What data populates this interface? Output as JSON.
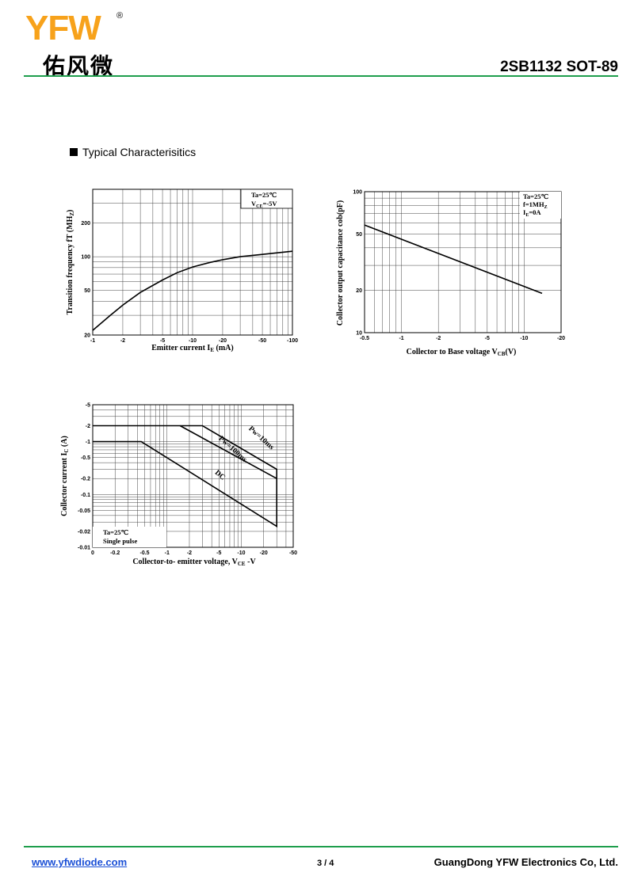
{
  "header": {
    "logo_y": "Y",
    "logo_f": "F",
    "logo_w": "W",
    "logo_reg": "®",
    "logo_cn": "佑风微",
    "part_title": "2SB1132 SOT-89",
    "brand_color": "#f7a21b",
    "rule_color": "#1e9e4c"
  },
  "section_title": "Typical  Characterisitics",
  "chart_data": [
    {
      "type": "line",
      "xscale": "log",
      "yscale": "log",
      "xlabel_main": "Emitter current I",
      "xlabel_sub": "E",
      "xlabel_unit": " (mA)",
      "ylabel_main": "Transition frequency fT (MH",
      "ylabel_sub": "Z",
      "ylabel_unit": ")",
      "x_ticks": [
        "-1",
        "-2",
        "-5",
        "-10",
        "-20",
        "-50",
        "-100"
      ],
      "x_tick_values": [
        1,
        2,
        5,
        10,
        20,
        50,
        100
      ],
      "y_ticks": [
        "20",
        "50",
        "100",
        "200"
      ],
      "y_tick_values": [
        20,
        50,
        100,
        200
      ],
      "xlim": [
        1,
        100
      ],
      "ylim": [
        20,
        400
      ],
      "note_line1": "Ta=25℃",
      "note_line2_main": "V",
      "note_line2_sub": "CE",
      "note_line2_rest": "=-5V",
      "series": [
        {
          "x": [
            1,
            1.5,
            2,
            3,
            5,
            7,
            10,
            15,
            20,
            30,
            50,
            100
          ],
          "y": [
            22,
            30,
            37,
            48,
            62,
            72,
            81,
            89,
            94,
            100,
            105,
            112
          ]
        }
      ]
    },
    {
      "type": "line",
      "xscale": "log",
      "yscale": "log",
      "xlabel_main": "Collector to Base voltage V",
      "xlabel_sub": "CB",
      "xlabel_unit": "(V)",
      "ylabel_main": "Collector output capacitance cob(pF)",
      "x_ticks": [
        "-0.5",
        "-1",
        "-2",
        "-5",
        "-10",
        "-20"
      ],
      "x_tick_values": [
        0.5,
        1,
        2,
        5,
        10,
        20
      ],
      "y_ticks": [
        "10",
        "20",
        "50",
        "100"
      ],
      "y_tick_values": [
        10,
        20,
        50,
        100
      ],
      "xlim": [
        0.5,
        20
      ],
      "ylim": [
        10,
        100
      ],
      "note_line1": "Ta=25℃",
      "note_line2": "f=1MH",
      "note_line2_sub": "Z",
      "note_line3_main": "I",
      "note_line3_sub": "E",
      "note_line3_rest": "=0A",
      "series": [
        {
          "x": [
            0.5,
            14
          ],
          "y": [
            58,
            19
          ]
        }
      ]
    },
    {
      "type": "line",
      "xscale": "log",
      "yscale": "log",
      "xlabel_main": "Collector-to- emitter voltage, V",
      "xlabel_sub": "CE",
      "xlabel_unit": " -V",
      "ylabel_main": "Collector current  I",
      "ylabel_sub": "C",
      "ylabel_unit": " (A)",
      "x_ticks": [
        "0",
        "-0.2",
        "-0.5",
        "-1",
        "-2",
        "-5",
        "-10",
        "-20",
        "-50"
      ],
      "x_tick_values": [
        0.1,
        0.2,
        0.5,
        1,
        2,
        5,
        10,
        20,
        50
      ],
      "y_ticks": [
        "-0.01",
        "-0.02",
        "-0.05",
        "-0.1",
        "-0.2",
        "-0.5",
        "-1",
        "-2",
        "-5"
      ],
      "y_tick_values": [
        0.01,
        0.02,
        0.05,
        0.1,
        0.2,
        0.5,
        1,
        2,
        5
      ],
      "xlim": [
        0.1,
        50
      ],
      "ylim": [
        0.01,
        5
      ],
      "note_line1": "Ta=25℃",
      "note_line2": "Single pulse",
      "series": [
        {
          "name": "Pw=10ms",
          "x": [
            0.1,
            3,
            30,
            30
          ],
          "y": [
            2,
            2,
            0.3,
            0.2
          ]
        },
        {
          "name": "Pw=100ms",
          "x": [
            1.5,
            30,
            30
          ],
          "y": [
            2,
            0.2,
            0.2
          ]
        },
        {
          "name": "DC",
          "x": [
            0.1,
            0.45,
            30,
            30
          ],
          "y": [
            1,
            1,
            0.025,
            0.2
          ]
        }
      ]
    }
  ],
  "footer": {
    "link": "www.yfwdiode.com",
    "page": "3 / 4",
    "company": "GuangDong YFW Electronics Co, Ltd."
  }
}
